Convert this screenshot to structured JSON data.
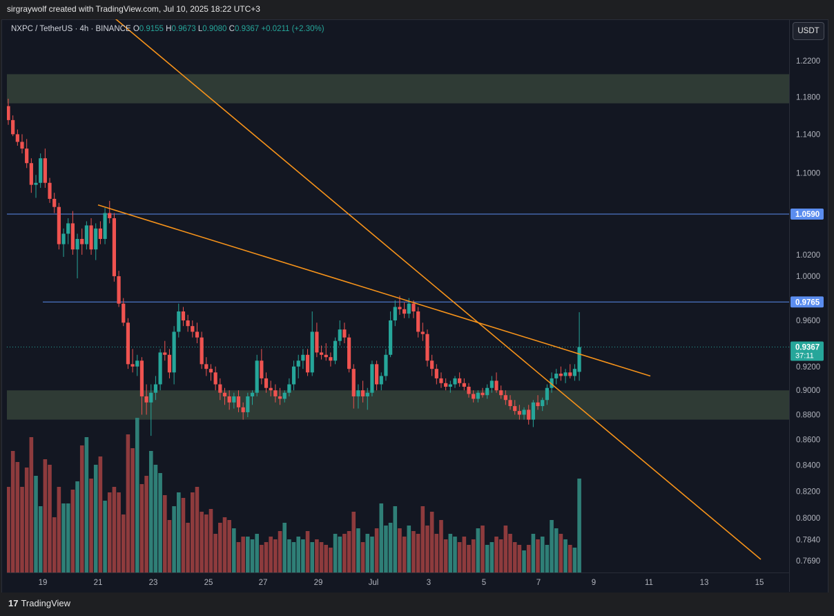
{
  "header": {
    "attribution": "sirgraywolf created with TradingView.com, Jul 10, 2025 18:22 UTC+3"
  },
  "legend": {
    "symbol": "NXPC / TetherUS · 4h · BINANCE",
    "open_label": "O",
    "open": "0.9155",
    "high_label": "H",
    "high": "0.9673",
    "low_label": "L",
    "low": "0.9080",
    "close_label": "C",
    "close": "0.9367",
    "change": "+0.0211 (+2.30%)"
  },
  "currency_button": "USDT",
  "footer": {
    "brand": "TradingView",
    "brand_mark": "17"
  },
  "colors": {
    "background": "#131722",
    "up": "#26a69a",
    "down": "#ef5350",
    "up_volume": "#2f7f77",
    "down_volume": "#8e3b3d",
    "zone": "#2f3b35",
    "trendline": "#f7931a",
    "level_line": "#5b8def",
    "price_badge": "#26a69a"
  },
  "chart_data": {
    "type": "candlestick",
    "interval": "4h",
    "y_scale": "log",
    "x_ticks": [
      "19",
      "21",
      "23",
      "25",
      "27",
      "29",
      "Jul",
      "3",
      "5",
      "7",
      "9",
      "11",
      "13",
      "15"
    ],
    "y_ticks": [
      "1.2200",
      "1.1800",
      "1.1400",
      "1.1000",
      "1.0200",
      "1.0000",
      "0.9600",
      "0.9200",
      "0.9000",
      "0.8800",
      "0.8600",
      "0.8400",
      "0.8200",
      "0.8000",
      "0.7840",
      "0.7690"
    ],
    "price_labels": [
      {
        "value": "1.0590",
        "kind": "level"
      },
      {
        "value": "0.9765",
        "kind": "level"
      },
      {
        "value": "0.9367",
        "countdown": "37:11",
        "kind": "current"
      }
    ],
    "horizontal_levels": [
      1.059,
      0.9765
    ],
    "current_price": 0.9367,
    "zones": [
      {
        "from": 1.173,
        "to": 1.205
      },
      {
        "from": 0.876,
        "to": 0.9
      }
    ],
    "trendlines": [
      {
        "from": {
          "date": "Jun 17",
          "price": 1.4
        },
        "to": {
          "date": "Jul 15",
          "price": 0.77
        }
      },
      {
        "from": {
          "date": "Jun 21",
          "price": 1.068
        },
        "to": {
          "date": "Jul 11",
          "price": 0.912
        }
      }
    ],
    "candles": [
      {
        "o": 1.17,
        "h": 1.178,
        "l": 1.15,
        "c": 1.155
      },
      {
        "o": 1.155,
        "h": 1.16,
        "l": 1.138,
        "c": 1.14
      },
      {
        "o": 1.14,
        "h": 1.145,
        "l": 1.128,
        "c": 1.132
      },
      {
        "o": 1.132,
        "h": 1.14,
        "l": 1.12,
        "c": 1.125
      },
      {
        "o": 1.125,
        "h": 1.135,
        "l": 1.105,
        "c": 1.11
      },
      {
        "o": 1.11,
        "h": 1.115,
        "l": 1.08,
        "c": 1.088
      },
      {
        "o": 1.088,
        "h": 1.098,
        "l": 1.075,
        "c": 1.09
      },
      {
        "o": 1.09,
        "h": 1.12,
        "l": 1.085,
        "c": 1.115
      },
      {
        "o": 1.115,
        "h": 1.125,
        "l": 1.085,
        "c": 1.09
      },
      {
        "o": 1.09,
        "h": 1.095,
        "l": 1.07,
        "c": 1.074
      },
      {
        "o": 1.074,
        "h": 1.08,
        "l": 1.06,
        "c": 1.066
      },
      {
        "o": 1.066,
        "h": 1.07,
        "l": 1.025,
        "c": 1.03
      },
      {
        "o": 1.03,
        "h": 1.045,
        "l": 1.018,
        "c": 1.04
      },
      {
        "o": 1.04,
        "h": 1.055,
        "l": 1.03,
        "c": 1.05
      },
      {
        "o": 1.05,
        "h": 1.062,
        "l": 1.02,
        "c": 1.025
      },
      {
        "o": 1.025,
        "h": 1.04,
        "l": 0.998,
        "c": 1.035
      },
      {
        "o": 1.035,
        "h": 1.045,
        "l": 1.02,
        "c": 1.03
      },
      {
        "o": 1.03,
        "h": 1.052,
        "l": 1.025,
        "c": 1.048
      },
      {
        "o": 1.048,
        "h": 1.055,
        "l": 1.02,
        "c": 1.025
      },
      {
        "o": 1.025,
        "h": 1.05,
        "l": 1.015,
        "c": 1.045
      },
      {
        "o": 1.045,
        "h": 1.052,
        "l": 1.03,
        "c": 1.035
      },
      {
        "o": 1.035,
        "h": 1.065,
        "l": 1.03,
        "c": 1.06
      },
      {
        "o": 1.06,
        "h": 1.072,
        "l": 1.05,
        "c": 1.055
      },
      {
        "o": 1.055,
        "h": 1.06,
        "l": 0.995,
        "c": 1.0
      },
      {
        "o": 1.0,
        "h": 1.005,
        "l": 0.972,
        "c": 0.975
      },
      {
        "o": 0.975,
        "h": 0.98,
        "l": 0.955,
        "c": 0.958
      },
      {
        "o": 0.958,
        "h": 0.962,
        "l": 0.918,
        "c": 0.922
      },
      {
        "o": 0.922,
        "h": 0.935,
        "l": 0.915,
        "c": 0.92
      },
      {
        "o": 0.92,
        "h": 0.93,
        "l": 0.912,
        "c": 0.925
      },
      {
        "o": 0.925,
        "h": 0.928,
        "l": 0.88,
        "c": 0.895
      },
      {
        "o": 0.895,
        "h": 0.905,
        "l": 0.88,
        "c": 0.89
      },
      {
        "o": 0.89,
        "h": 0.905,
        "l": 0.863,
        "c": 0.898
      },
      {
        "o": 0.898,
        "h": 0.912,
        "l": 0.892,
        "c": 0.905
      },
      {
        "o": 0.905,
        "h": 0.935,
        "l": 0.9,
        "c": 0.932
      },
      {
        "o": 0.932,
        "h": 0.942,
        "l": 0.925,
        "c": 0.93
      },
      {
        "o": 0.93,
        "h": 0.935,
        "l": 0.91,
        "c": 0.915
      },
      {
        "o": 0.915,
        "h": 0.955,
        "l": 0.905,
        "c": 0.95
      },
      {
        "o": 0.95,
        "h": 0.975,
        "l": 0.945,
        "c": 0.968
      },
      {
        "o": 0.968,
        "h": 0.972,
        "l": 0.955,
        "c": 0.96
      },
      {
        "o": 0.96,
        "h": 0.965,
        "l": 0.95,
        "c": 0.955
      },
      {
        "o": 0.955,
        "h": 0.96,
        "l": 0.945,
        "c": 0.95
      },
      {
        "o": 0.95,
        "h": 0.958,
        "l": 0.94,
        "c": 0.945
      },
      {
        "o": 0.945,
        "h": 0.95,
        "l": 0.918,
        "c": 0.922
      },
      {
        "o": 0.922,
        "h": 0.928,
        "l": 0.912,
        "c": 0.918
      },
      {
        "o": 0.918,
        "h": 0.922,
        "l": 0.908,
        "c": 0.915
      },
      {
        "o": 0.915,
        "h": 0.92,
        "l": 0.9,
        "c": 0.905
      },
      {
        "o": 0.905,
        "h": 0.91,
        "l": 0.892,
        "c": 0.898
      },
      {
        "o": 0.898,
        "h": 0.902,
        "l": 0.888,
        "c": 0.895
      },
      {
        "o": 0.895,
        "h": 0.9,
        "l": 0.884,
        "c": 0.89
      },
      {
        "o": 0.89,
        "h": 0.898,
        "l": 0.885,
        "c": 0.895
      },
      {
        "o": 0.895,
        "h": 0.9,
        "l": 0.882,
        "c": 0.886
      },
      {
        "o": 0.886,
        "h": 0.89,
        "l": 0.876,
        "c": 0.882
      },
      {
        "o": 0.882,
        "h": 0.898,
        "l": 0.878,
        "c": 0.895
      },
      {
        "o": 0.895,
        "h": 0.9,
        "l": 0.888,
        "c": 0.898
      },
      {
        "o": 0.898,
        "h": 0.93,
        "l": 0.895,
        "c": 0.925
      },
      {
        "o": 0.925,
        "h": 0.935,
        "l": 0.905,
        "c": 0.91
      },
      {
        "o": 0.91,
        "h": 0.915,
        "l": 0.898,
        "c": 0.902
      },
      {
        "o": 0.902,
        "h": 0.908,
        "l": 0.895,
        "c": 0.9
      },
      {
        "o": 0.9,
        "h": 0.905,
        "l": 0.89,
        "c": 0.895
      },
      {
        "o": 0.895,
        "h": 0.902,
        "l": 0.888,
        "c": 0.893
      },
      {
        "o": 0.893,
        "h": 0.9,
        "l": 0.89,
        "c": 0.898
      },
      {
        "o": 0.898,
        "h": 0.91,
        "l": 0.895,
        "c": 0.905
      },
      {
        "o": 0.905,
        "h": 0.925,
        "l": 0.9,
        "c": 0.92
      },
      {
        "o": 0.92,
        "h": 0.93,
        "l": 0.91,
        "c": 0.925
      },
      {
        "o": 0.925,
        "h": 0.935,
        "l": 0.918,
        "c": 0.93
      },
      {
        "o": 0.93,
        "h": 0.935,
        "l": 0.912,
        "c": 0.915
      },
      {
        "o": 0.915,
        "h": 0.968,
        "l": 0.912,
        "c": 0.95
      },
      {
        "o": 0.95,
        "h": 0.958,
        "l": 0.928,
        "c": 0.932
      },
      {
        "o": 0.932,
        "h": 0.938,
        "l": 0.926,
        "c": 0.93
      },
      {
        "o": 0.93,
        "h": 0.94,
        "l": 0.925,
        "c": 0.928
      },
      {
        "o": 0.928,
        "h": 0.932,
        "l": 0.92,
        "c": 0.925
      },
      {
        "o": 0.925,
        "h": 0.945,
        "l": 0.922,
        "c": 0.942
      },
      {
        "o": 0.942,
        "h": 0.96,
        "l": 0.938,
        "c": 0.952
      },
      {
        "o": 0.952,
        "h": 0.958,
        "l": 0.94,
        "c": 0.945
      },
      {
        "o": 0.945,
        "h": 0.948,
        "l": 0.915,
        "c": 0.918
      },
      {
        "o": 0.918,
        "h": 0.922,
        "l": 0.885,
        "c": 0.895
      },
      {
        "o": 0.895,
        "h": 0.905,
        "l": 0.885,
        "c": 0.9
      },
      {
        "o": 0.9,
        "h": 0.908,
        "l": 0.89,
        "c": 0.895
      },
      {
        "o": 0.895,
        "h": 0.902,
        "l": 0.884,
        "c": 0.898
      },
      {
        "o": 0.898,
        "h": 0.925,
        "l": 0.895,
        "c": 0.922
      },
      {
        "o": 0.922,
        "h": 0.925,
        "l": 0.9,
        "c": 0.905
      },
      {
        "o": 0.905,
        "h": 0.915,
        "l": 0.9,
        "c": 0.912
      },
      {
        "o": 0.912,
        "h": 0.935,
        "l": 0.908,
        "c": 0.93
      },
      {
        "o": 0.93,
        "h": 0.968,
        "l": 0.928,
        "c": 0.96
      },
      {
        "o": 0.96,
        "h": 0.978,
        "l": 0.955,
        "c": 0.972
      },
      {
        "o": 0.972,
        "h": 0.982,
        "l": 0.965,
        "c": 0.97
      },
      {
        "o": 0.97,
        "h": 0.976,
        "l": 0.962,
        "c": 0.966
      },
      {
        "o": 0.966,
        "h": 0.98,
        "l": 0.962,
        "c": 0.975
      },
      {
        "o": 0.975,
        "h": 0.978,
        "l": 0.962,
        "c": 0.968
      },
      {
        "o": 0.968,
        "h": 0.972,
        "l": 0.945,
        "c": 0.95
      },
      {
        "o": 0.95,
        "h": 0.958,
        "l": 0.942,
        "c": 0.948
      },
      {
        "o": 0.948,
        "h": 0.952,
        "l": 0.92,
        "c": 0.925
      },
      {
        "o": 0.925,
        "h": 0.93,
        "l": 0.912,
        "c": 0.918
      },
      {
        "o": 0.918,
        "h": 0.922,
        "l": 0.905,
        "c": 0.91
      },
      {
        "o": 0.91,
        "h": 0.915,
        "l": 0.902,
        "c": 0.906
      },
      {
        "o": 0.906,
        "h": 0.91,
        "l": 0.9,
        "c": 0.903
      },
      {
        "o": 0.903,
        "h": 0.908,
        "l": 0.898,
        "c": 0.905
      },
      {
        "o": 0.905,
        "h": 0.912,
        "l": 0.902,
        "c": 0.91
      },
      {
        "o": 0.91,
        "h": 0.915,
        "l": 0.903,
        "c": 0.906
      },
      {
        "o": 0.906,
        "h": 0.91,
        "l": 0.9,
        "c": 0.903
      },
      {
        "o": 0.903,
        "h": 0.906,
        "l": 0.894,
        "c": 0.897
      },
      {
        "o": 0.897,
        "h": 0.9,
        "l": 0.89,
        "c": 0.893
      },
      {
        "o": 0.893,
        "h": 0.9,
        "l": 0.89,
        "c": 0.898
      },
      {
        "o": 0.898,
        "h": 0.902,
        "l": 0.894,
        "c": 0.896
      },
      {
        "o": 0.896,
        "h": 0.905,
        "l": 0.893,
        "c": 0.902
      },
      {
        "o": 0.902,
        "h": 0.912,
        "l": 0.898,
        "c": 0.908
      },
      {
        "o": 0.908,
        "h": 0.915,
        "l": 0.898,
        "c": 0.9
      },
      {
        "o": 0.9,
        "h": 0.904,
        "l": 0.893,
        "c": 0.896
      },
      {
        "o": 0.896,
        "h": 0.9,
        "l": 0.888,
        "c": 0.892
      },
      {
        "o": 0.892,
        "h": 0.896,
        "l": 0.884,
        "c": 0.887
      },
      {
        "o": 0.887,
        "h": 0.892,
        "l": 0.88,
        "c": 0.883
      },
      {
        "o": 0.883,
        "h": 0.888,
        "l": 0.876,
        "c": 0.88
      },
      {
        "o": 0.88,
        "h": 0.886,
        "l": 0.876,
        "c": 0.884
      },
      {
        "o": 0.884,
        "h": 0.888,
        "l": 0.872,
        "c": 0.876
      },
      {
        "o": 0.876,
        "h": 0.892,
        "l": 0.87,
        "c": 0.89
      },
      {
        "o": 0.89,
        "h": 0.896,
        "l": 0.884,
        "c": 0.887
      },
      {
        "o": 0.887,
        "h": 0.894,
        "l": 0.883,
        "c": 0.892
      },
      {
        "o": 0.892,
        "h": 0.905,
        "l": 0.888,
        "c": 0.902
      },
      {
        "o": 0.902,
        "h": 0.915,
        "l": 0.898,
        "c": 0.91
      },
      {
        "o": 0.91,
        "h": 0.918,
        "l": 0.905,
        "c": 0.914
      },
      {
        "o": 0.914,
        "h": 0.92,
        "l": 0.908,
        "c": 0.912
      },
      {
        "o": 0.912,
        "h": 0.918,
        "l": 0.906,
        "c": 0.915
      },
      {
        "o": 0.915,
        "h": 0.922,
        "l": 0.91,
        "c": 0.912
      },
      {
        "o": 0.912,
        "h": 0.922,
        "l": 0.908,
        "c": 0.918
      },
      {
        "o": 0.9155,
        "h": 0.9673,
        "l": 0.908,
        "c": 0.9367
      }
    ],
    "volume": [
      31,
      44,
      40,
      31,
      38,
      49,
      35,
      24,
      41,
      39,
      20,
      31,
      25,
      25,
      30,
      33,
      46,
      49,
      34,
      39,
      42,
      26,
      29,
      31,
      29,
      21,
      50,
      45,
      56,
      32,
      35,
      44,
      39,
      36,
      28,
      19,
      24,
      29,
      27,
      18,
      29,
      31,
      22,
      21,
      23,
      14,
      18,
      20,
      19,
      16,
      11,
      13,
      13,
      12,
      14,
      10,
      11,
      13,
      12,
      15,
      18,
      12,
      11,
      13,
      12,
      15,
      11,
      12,
      11,
      10,
      9,
      14,
      13,
      14,
      15,
      22,
      16,
      11,
      14,
      13,
      16,
      25,
      17,
      18,
      24,
      16,
      13,
      17,
      15,
      14,
      24,
      17,
      22,
      14,
      19,
      12,
      14,
      13,
      11,
      13,
      10,
      12,
      16,
      17,
      10,
      11,
      13,
      12,
      17,
      14,
      11,
      10,
      8,
      10,
      14,
      12,
      13,
      10,
      19,
      16,
      14,
      12,
      10,
      9,
      34
    ]
  }
}
